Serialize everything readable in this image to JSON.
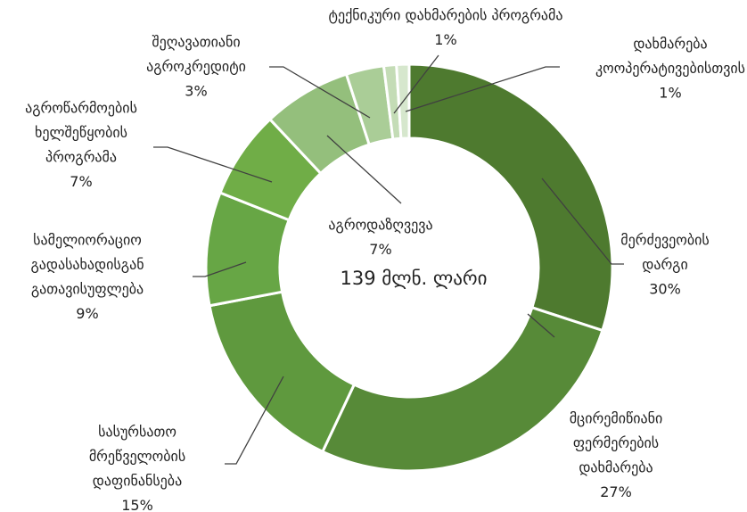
{
  "chart_data": {
    "type": "donut",
    "center_label": "139 მლნ. ლარი",
    "categories": [
      [
        "მერძევეობის",
        "დარგი"
      ],
      [
        "მცირემიწიანი",
        "ფერმერების",
        "დახმარება"
      ],
      [
        "სასურსათო",
        "მრეწველობის",
        "დაფინანსება"
      ],
      [
        "სამელიორაციო",
        "გადასახადისგან",
        "გათავისუფლება"
      ],
      [
        "აგროწარმოების",
        "ხელშეწყობის",
        "პროგრამა"
      ],
      [
        "აგროდაზღვევა"
      ],
      [
        "შეღავათიანი",
        "აგროკრედიტი"
      ],
      [
        "ტექნიკური დახმარების პროგრამა"
      ],
      [
        "დახმარება",
        "კოოპერატივებისთვის"
      ]
    ],
    "values": [
      30,
      27,
      15,
      9,
      7,
      7,
      3,
      1,
      1
    ],
    "value_labels": [
      "30%",
      "27%",
      "15%",
      "9%",
      "7%",
      "7%",
      "3%",
      "1%",
      "1%"
    ],
    "colors": [
      "#4e7a2f",
      "#578a38",
      "#5f993e",
      "#67a645",
      "#70ad47",
      "#94bf7c",
      "#aacd97",
      "#c4dcb6",
      "#d6e7cd"
    ]
  }
}
